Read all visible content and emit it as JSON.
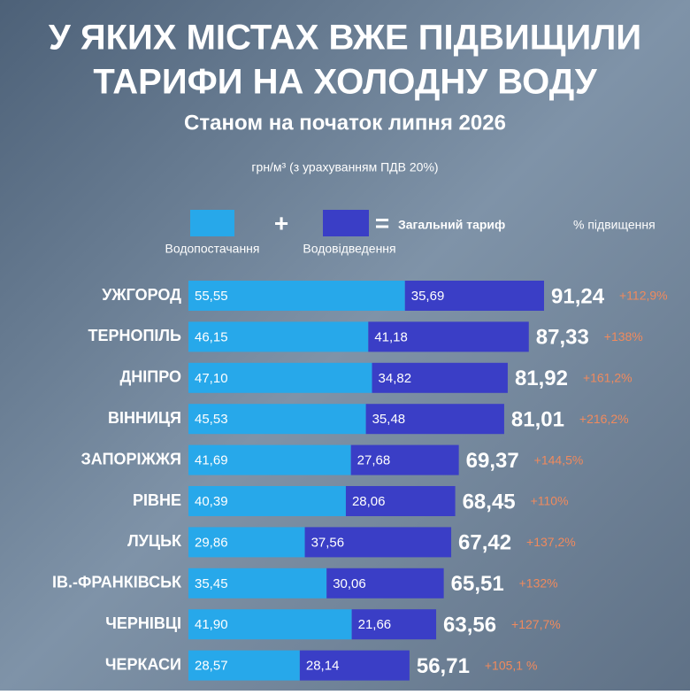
{
  "chart_data": {
    "type": "stacked-bar-horizontal",
    "title_lines": [
      "У ЯКИХ МІСТАХ ВЖЕ ПІДВИЩИЛИ",
      "ТАРИФИ НА ХОЛОДНУ ВОДУ"
    ],
    "subtitle": "Станом на початок липня 2026",
    "unit": "грн/м³ (з урахуванням ПДВ 20%)",
    "total_legend": "Загальний тариф",
    "increase_legend": "% підвищення",
    "categories": [
      "УЖГОРОД",
      "ТЕРНОПІЛЬ",
      "ДНІПРО",
      "ВІННИЦЯ",
      "ЗАПОРІЖЖЯ",
      "РІВНЕ",
      "ЛУЦЬК",
      "ІВ.-ФРАНКІВСЬК",
      "ЧЕРНІВЦІ",
      "ЧЕРКАСИ"
    ],
    "series": [
      {
        "name": "Водопостачання",
        "color": "#27a8ea",
        "values": [
          55.55,
          46.15,
          47.1,
          45.53,
          41.69,
          40.39,
          29.86,
          35.45,
          41.9,
          28.57
        ],
        "value_labels": [
          "55,55",
          "46,15",
          "47,10",
          "45,53",
          "41,69",
          "40,39",
          "29,86",
          "35,45",
          "41,90",
          "28,57"
        ]
      },
      {
        "name": "Водовідведення",
        "color": "#3a3ec6",
        "values": [
          35.69,
          41.18,
          34.82,
          35.48,
          27.68,
          28.06,
          37.56,
          30.06,
          21.66,
          28.14
        ],
        "value_labels": [
          "35,69",
          "41,18",
          "34,82",
          "35,48",
          "27,68",
          "28,06",
          "37,56",
          "30,06",
          "21,66",
          "28,14"
        ]
      }
    ],
    "totals": {
      "values": [
        91.24,
        87.33,
        81.92,
        81.01,
        69.37,
        68.45,
        67.42,
        65.51,
        63.56,
        56.71
      ],
      "value_labels": [
        "91,24",
        "87,33",
        "81,92",
        "81,01",
        "69,37",
        "68,45",
        "67,42",
        "65,51",
        "63,56",
        "56,71"
      ]
    },
    "increase": {
      "color": "#f08a5d",
      "values": [
        112.9,
        138,
        161.2,
        216.2,
        144.5,
        110,
        137.2,
        132,
        127.7,
        105.1
      ],
      "value_labels": [
        "+112,9%",
        "+138%",
        "+161,2%",
        "+216,2%",
        "+144,5%",
        "+110%",
        "+137,2%",
        "+132%",
        "+127,7%",
        "+105,1 %"
      ]
    }
  }
}
